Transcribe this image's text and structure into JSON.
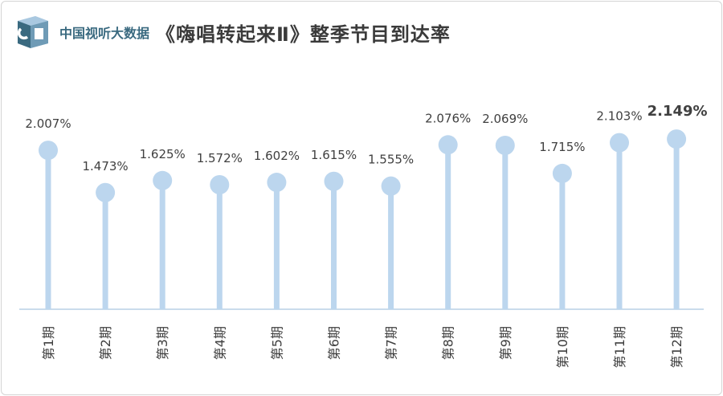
{
  "header": {
    "brand": "中国视听大数据",
    "title": "《嗨唱转起来Ⅱ》整季节目到达率"
  },
  "colors": {
    "lollipop": "#bcd6ee",
    "axis": "#b8d0e6",
    "label": "#404040",
    "logo_dark": "#3a6a80",
    "logo_light": "#a9c8e0"
  },
  "chart_data": {
    "type": "lollipop",
    "title": "《嗨唱转起来Ⅱ》整季节目到达率",
    "categories": [
      "第1期",
      "第2期",
      "第3期",
      "第4期",
      "第5期",
      "第6期",
      "第7期",
      "第8期",
      "第9期",
      "第10期",
      "第11期",
      "第12期"
    ],
    "values": [
      2.007,
      1.473,
      1.625,
      1.572,
      1.602,
      1.615,
      1.555,
      2.076,
      2.069,
      1.715,
      2.103,
      2.149
    ],
    "value_labels": [
      "2.007%",
      "1.473%",
      "1.625%",
      "1.572%",
      "1.602%",
      "1.615%",
      "1.555%",
      "2.076%",
      "2.069%",
      "1.715%",
      "2.103%",
      "2.149%"
    ],
    "unit": "%",
    "highlight_index": 11,
    "xlabel": "",
    "ylabel": "",
    "ylim": [
      0,
      2.3
    ],
    "grid": false,
    "legend": "none"
  }
}
